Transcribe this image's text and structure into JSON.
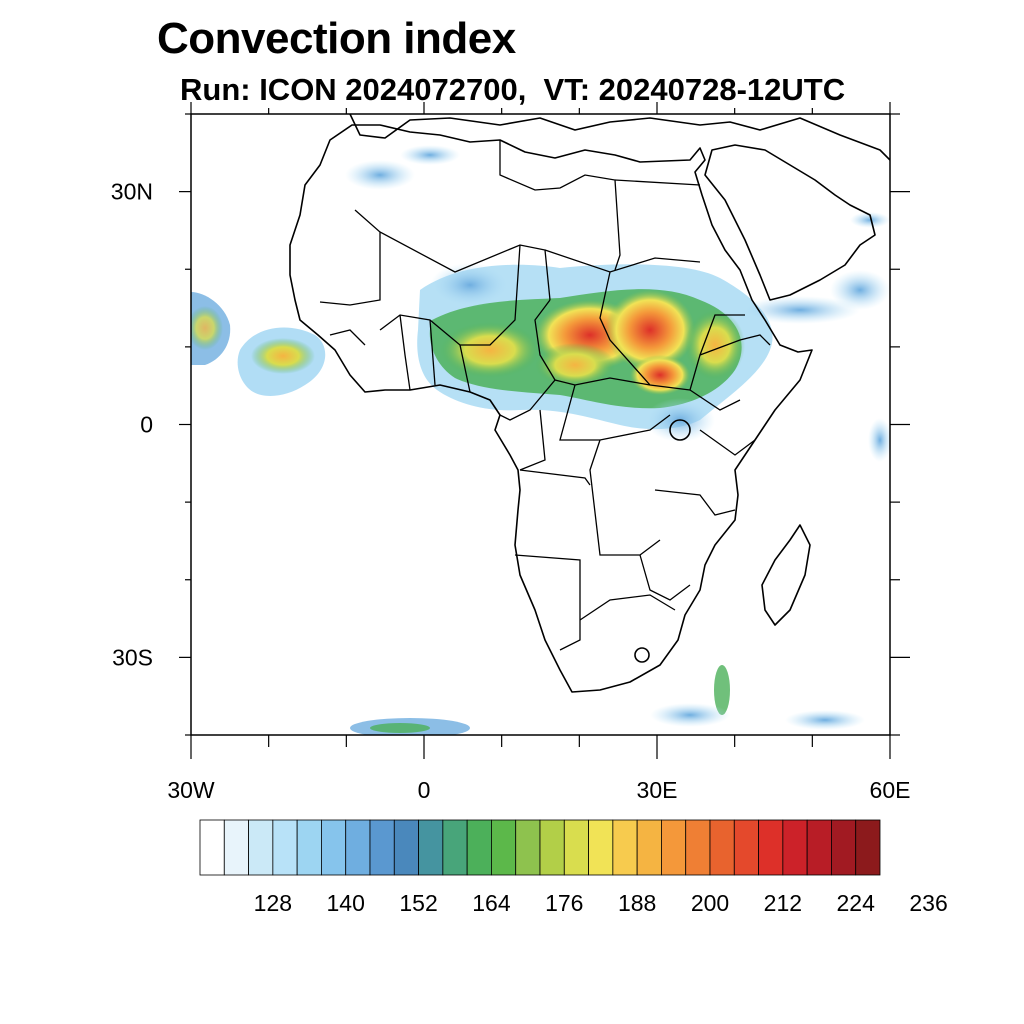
{
  "title": "Convection index",
  "subtitle": "Run: ICON 2024072700,  VT: 20240728-12UTC",
  "map": {
    "lon_range": [
      -30,
      60
    ],
    "lat_range": [
      -40,
      40
    ],
    "lat_ticks": [
      {
        "value": 30,
        "label": "30N"
      },
      {
        "value": 0,
        "label": "0"
      },
      {
        "value": -30,
        "label": "30S"
      }
    ],
    "lon_ticks": [
      {
        "value": -30,
        "label": "30W"
      },
      {
        "value": 0,
        "label": "0"
      },
      {
        "value": 30,
        "label": "30E"
      },
      {
        "value": 60,
        "label": "60E"
      }
    ]
  },
  "colorbar": {
    "colors": [
      "#ffffff",
      "#e8f4fb",
      "#cbe9f7",
      "#b8e2f8",
      "#9dd5f2",
      "#86c4ec",
      "#6faee0",
      "#5a98d0",
      "#4a88bc",
      "#4594a0",
      "#48a57a",
      "#4cb05a",
      "#5cb84a",
      "#8ec24e",
      "#b2cf48",
      "#d9dd4e",
      "#f1e356",
      "#f7cb4e",
      "#f5b442",
      "#f4983a",
      "#ef7f34",
      "#e8632e",
      "#e4492c",
      "#dd3029",
      "#cc2229",
      "#b81d26",
      "#a11a22",
      "#8c1a1c"
    ],
    "labels": [
      "128",
      "140",
      "152",
      "164",
      "176",
      "188",
      "200",
      "212",
      "224",
      "236"
    ]
  }
}
